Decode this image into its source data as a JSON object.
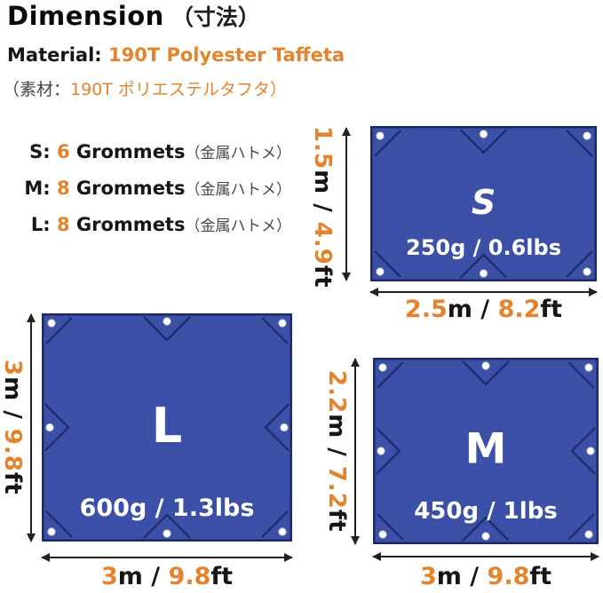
{
  "colors": {
    "orange": "#E5832D",
    "tarp_blue": "#3B50A6",
    "tarp_border": "#1C2B66",
    "text_black": "#161616",
    "text_gray": "#474747",
    "arrow_black": "#222222",
    "grommet_white": "#FFFFFF"
  },
  "header": {
    "title_en": "Dimension",
    "title_jp": "（寸法）",
    "material": [
      [
        "Material: ",
        "k"
      ],
      [
        "190T Polyester Taffeta",
        "o"
      ]
    ],
    "material_jp": [
      [
        "（素材：",
        "g"
      ],
      [
        "190T ポリエステルタフタ）",
        "o"
      ]
    ]
  },
  "grommet_list": [
    [
      [
        "S: ",
        "k"
      ],
      [
        "6",
        "o"
      ],
      [
        " Grommets",
        "k"
      ],
      [
        "（金属ハトメ）",
        "g"
      ]
    ],
    [
      [
        "M: ",
        "k"
      ],
      [
        "8",
        "o"
      ],
      [
        " Grommets",
        "k"
      ],
      [
        "（金属ハトメ）",
        "g"
      ]
    ],
    [
      [
        "L: ",
        "k"
      ],
      [
        "8",
        "o"
      ],
      [
        " Grommets",
        "k"
      ],
      [
        "（金属ハトメ）",
        "g"
      ]
    ]
  ],
  "tarps": [
    {
      "letter": "S",
      "weight": "250g / 0.6lbs",
      "grommets": [
        "tl",
        "tm",
        "tr",
        "bl",
        "bm",
        "br"
      ],
      "height_label": [
        [
          "1.5",
          "o"
        ],
        [
          "m",
          "k"
        ],
        [
          " / ",
          "k"
        ],
        [
          "4.9",
          "o"
        ],
        [
          "ft",
          "k"
        ]
      ],
      "width_label": [
        [
          "2.5",
          "o"
        ],
        [
          "m",
          "k"
        ],
        [
          " / ",
          "k"
        ],
        [
          "8.2",
          "o"
        ],
        [
          "ft",
          "k"
        ]
      ]
    },
    {
      "letter": "L",
      "weight": "600g / 1.3lbs",
      "grommets": [
        "tl",
        "tm",
        "tr",
        "ml",
        "mr",
        "bl",
        "bm",
        "br"
      ],
      "height_label": [
        [
          "3",
          "o"
        ],
        [
          "m",
          "k"
        ],
        [
          " / ",
          "k"
        ],
        [
          "9.8",
          "o"
        ],
        [
          "ft",
          "k"
        ]
      ],
      "width_label": [
        [
          "3",
          "o"
        ],
        [
          "m",
          "k"
        ],
        [
          " / ",
          "k"
        ],
        [
          "9.8",
          "o"
        ],
        [
          "ft",
          "k"
        ]
      ]
    },
    {
      "letter": "M",
      "weight": "450g / 1lbs",
      "grommets": [
        "tl",
        "tm",
        "tr",
        "ml",
        "mr",
        "bl",
        "bm",
        "br"
      ],
      "height_label": [
        [
          "2.2",
          "o"
        ],
        [
          "m",
          "k"
        ],
        [
          " / ",
          "k"
        ],
        [
          "7.2",
          "o"
        ],
        [
          "ft",
          "k"
        ]
      ],
      "width_label": [
        [
          "3",
          "o"
        ],
        [
          "m",
          "k"
        ],
        [
          " / ",
          "k"
        ],
        [
          "9.8",
          "o"
        ],
        [
          "ft",
          "k"
        ]
      ]
    }
  ]
}
